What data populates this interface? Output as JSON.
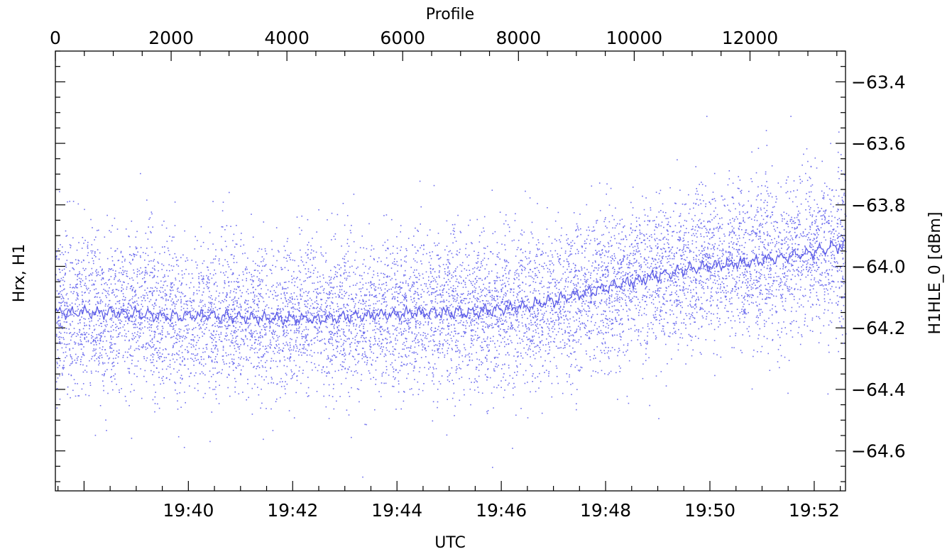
{
  "chart_data": {
    "type": "scatter",
    "x_bottom_label": "UTC",
    "x_top_label": "Profile",
    "y_left_label": "Hrx,  H1",
    "y_right_label": "H1HLE_0  [dBm]",
    "x_range_minutes": [
      1157.45,
      1172.6
    ],
    "x_top_range": [
      0,
      13650
    ],
    "y_range": [
      -64.73,
      -63.3
    ],
    "x_bottom_ticks": [
      "19:40",
      "19:42",
      "19:44",
      "19:46",
      "19:48",
      "19:50",
      "19:52"
    ],
    "x_bottom_tick_minutes": [
      1160,
      1162,
      1164,
      1166,
      1168,
      1170,
      1172
    ],
    "x_top_ticks": [
      0,
      2000,
      4000,
      6000,
      8000,
      10000,
      12000
    ],
    "y_ticks": [
      -63.4,
      -63.6,
      -63.8,
      -64.0,
      -64.2,
      -64.4,
      -64.6
    ],
    "y_tick_labels": [
      "−63.4",
      "−63.6",
      "−63.8",
      "−64.0",
      "−64.2",
      "−64.4",
      "−64.6"
    ],
    "grid": false,
    "legend": "none",
    "series": [
      {
        "kind": "points",
        "description": "raw samples, dense scatter",
        "color": "#6f6fee",
        "approx_spread_dBm": 0.28
      },
      {
        "kind": "line",
        "description": "running mean",
        "color": "#5a5ae6",
        "trend": {
          "x_minutes": [
            1157.45,
            1158.5,
            1159.5,
            1160.5,
            1161.5,
            1162.5,
            1163.5,
            1164.5,
            1165.5,
            1166.5,
            1167.5,
            1168.5,
            1169.5,
            1170.5,
            1171.5,
            1172.6
          ],
          "y_dBm": [
            -64.15,
            -64.15,
            -64.16,
            -64.16,
            -64.17,
            -64.17,
            -64.16,
            -64.15,
            -64.15,
            -64.13,
            -64.09,
            -64.05,
            -64.01,
            -63.99,
            -63.97,
            -63.93
          ]
        }
      }
    ]
  }
}
